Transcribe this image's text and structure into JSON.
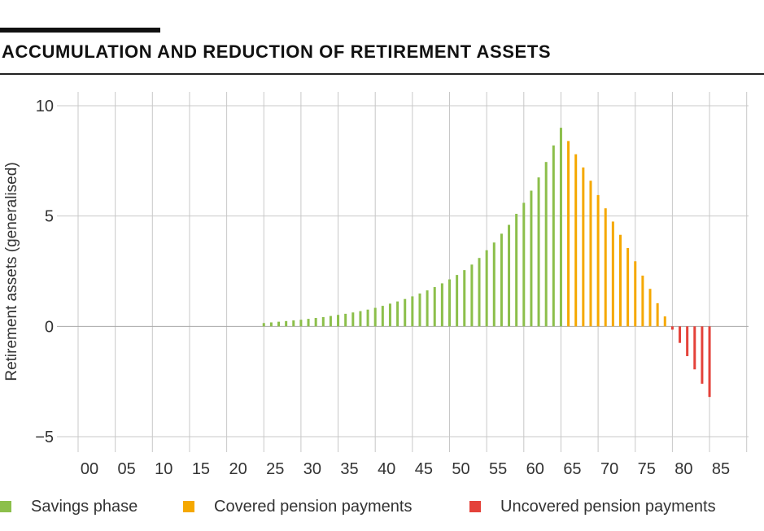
{
  "header": {
    "title": "ACCUMULATION AND REDUCTION OF RETIREMENT ASSETS"
  },
  "chart_data": {
    "type": "bar",
    "title": "ACCUMULATION AND REDUCTION OF RETIREMENT ASSETS",
    "xlabel": "",
    "ylabel": "Retirement assets (generalised)",
    "ylim": [
      -5,
      10
    ],
    "xlim": [
      0,
      88
    ],
    "x_ticks": [
      0,
      5,
      10,
      15,
      20,
      25,
      30,
      35,
      40,
      45,
      50,
      55,
      60,
      65,
      70,
      75,
      80,
      85
    ],
    "x_tick_labels": [
      "00",
      "05",
      "10",
      "15",
      "20",
      "25",
      "30",
      "35",
      "40",
      "45",
      "50",
      "55",
      "60",
      "65",
      "70",
      "75",
      "80",
      "85"
    ],
    "y_ticks": [
      10,
      5,
      0,
      -5
    ],
    "y_tick_labels": [
      "10",
      "5",
      "0",
      "−5"
    ],
    "grid": true,
    "legend_position": "bottom",
    "series": [
      {
        "name": "Savings phase",
        "color": "#8cbf4b",
        "x": [
          25,
          26,
          27,
          28,
          29,
          30,
          31,
          32,
          33,
          34,
          35,
          36,
          37,
          38,
          39,
          40,
          41,
          42,
          43,
          44,
          45,
          46,
          47,
          48,
          49,
          50,
          51,
          52,
          53,
          54,
          55,
          56,
          57,
          58,
          59,
          60,
          61,
          62,
          63,
          64,
          65
        ],
        "values": [
          0.15,
          0.18,
          0.21,
          0.24,
          0.27,
          0.3,
          0.34,
          0.38,
          0.42,
          0.47,
          0.52,
          0.57,
          0.63,
          0.69,
          0.76,
          0.84,
          0.93,
          1.03,
          1.13,
          1.24,
          1.36,
          1.49,
          1.63,
          1.78,
          1.95,
          2.13,
          2.33,
          2.55,
          2.8,
          3.1,
          3.45,
          3.8,
          4.2,
          4.6,
          5.1,
          5.6,
          6.15,
          6.75,
          7.45,
          8.2,
          9.0
        ]
      },
      {
        "name": "Covered pension payments",
        "color": "#f5a800",
        "x": [
          66,
          67,
          68,
          69,
          70,
          71,
          72,
          73,
          74,
          75,
          76,
          77,
          78,
          79
        ],
        "values": [
          8.4,
          7.8,
          7.2,
          6.6,
          5.95,
          5.35,
          4.75,
          4.15,
          3.55,
          2.95,
          2.3,
          1.7,
          1.05,
          0.45
        ]
      },
      {
        "name": "Uncovered pension payments",
        "color": "#e4423a",
        "x": [
          80,
          81,
          82,
          83,
          84,
          85
        ],
        "values": [
          -0.15,
          -0.75,
          -1.35,
          -1.95,
          -2.6,
          -3.2
        ]
      }
    ]
  }
}
